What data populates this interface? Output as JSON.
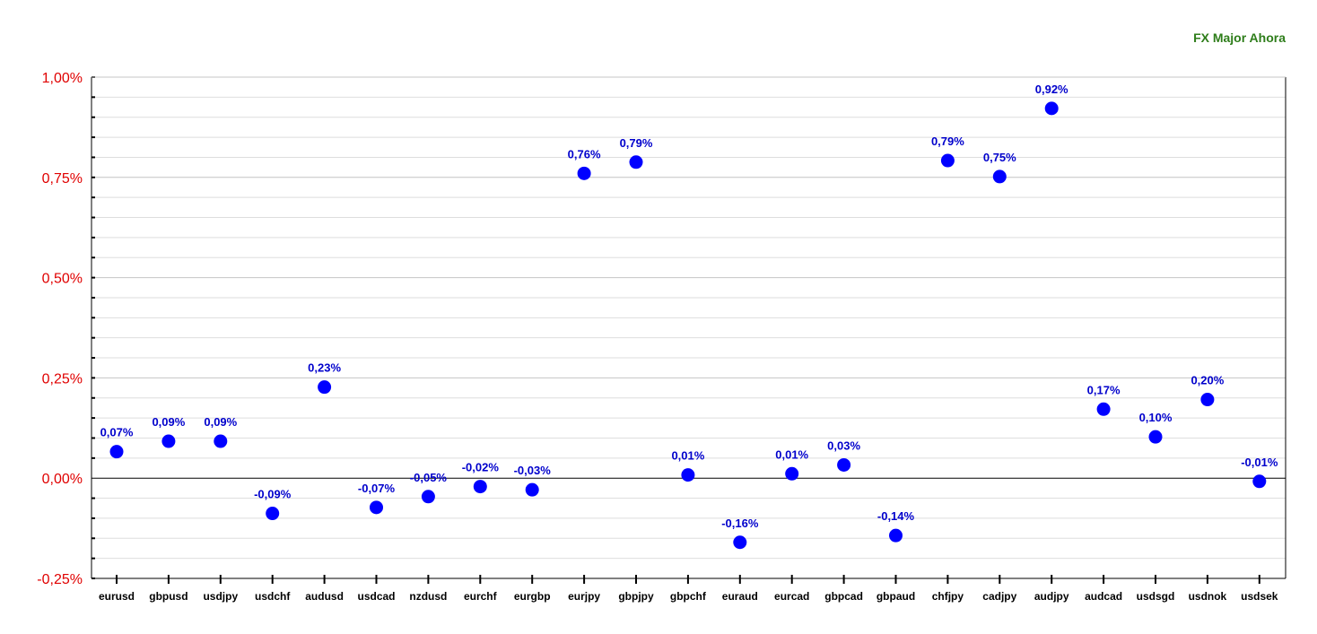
{
  "title": "FX Major Ahora",
  "colors": {
    "title": "#2e7d1a",
    "y_tick_labels": "#e00000",
    "points": "#0000ff",
    "data_labels": "#0000cc",
    "x_tick_labels": "#000000",
    "gridline": "#c8c8c8",
    "zero_line": "#000000"
  },
  "chart_data": {
    "type": "scatter",
    "title": "FX Major Ahora",
    "xlabel": "",
    "ylabel": "",
    "ylim": [
      -0.25,
      1.0
    ],
    "y_tick_values": [
      -0.25,
      0.0,
      0.25,
      0.5,
      0.75,
      1.0
    ],
    "y_tick_labels": [
      "-0,25%",
      "0,00%",
      "0,25%",
      "0,50%",
      "0,75%",
      "1,00%"
    ],
    "grid": true,
    "legend": "none",
    "categories": [
      "eurusd",
      "gbpusd",
      "usdjpy",
      "usdchf",
      "audusd",
      "usdcad",
      "nzdusd",
      "eurchf",
      "eurgbp",
      "eurjpy",
      "gbpjpy",
      "gbpchf",
      "euraud",
      "eurcad",
      "gbpcad",
      "gbpaud",
      "chfjpy",
      "cadjpy",
      "audjpy",
      "audcad",
      "usdsgd",
      "usdnok",
      "usdsek"
    ],
    "values": [
      0.066,
      0.092,
      0.092,
      -0.088,
      0.227,
      -0.073,
      -0.046,
      -0.021,
      -0.029,
      0.76,
      0.788,
      0.008,
      -0.16,
      0.011,
      0.033,
      -0.143,
      0.792,
      0.752,
      0.922,
      0.172,
      0.103,
      0.196,
      -0.008
    ],
    "data_labels": [
      "0,07%",
      "0,09%",
      "0,09%",
      "-0,09%",
      "0,23%",
      "-0,07%",
      "-0,05%",
      "-0,02%",
      "-0,03%",
      "0,76%",
      "0,79%",
      "0,01%",
      "-0,16%",
      "0,01%",
      "0,03%",
      "-0,14%",
      "0,79%",
      "0,75%",
      "0,92%",
      "0,17%",
      "0,10%",
      "0,20%",
      "-0,01%"
    ]
  }
}
